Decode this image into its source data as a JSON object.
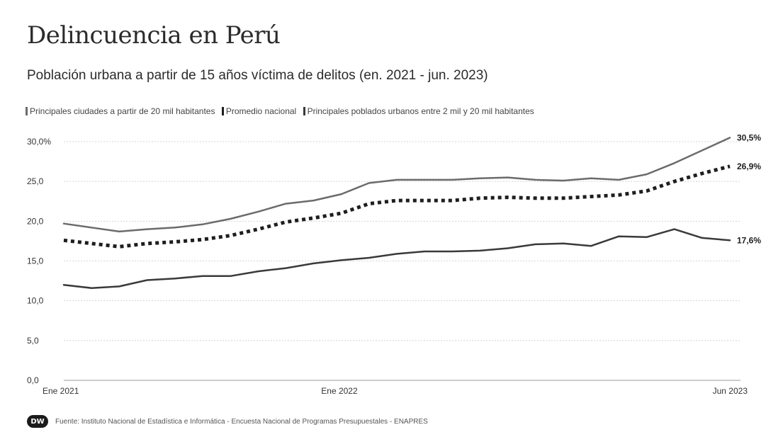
{
  "brand": {
    "logo_text": "DW"
  },
  "source_text": "Fuente: Instituto Nacional de Estadística e Informática - Encuesta Nacional de Programas Presupuestales - ENAPRES",
  "chart_data": {
    "type": "line",
    "title": "Delincuencia en Perú",
    "subtitle": "Población urbana a partir de 15 años víctima de delitos (en. 2021 - jun. 2023)",
    "xlabel": "",
    "ylabel": "",
    "ylim": [
      0,
      30
    ],
    "yticks": [
      "0,0",
      "5,0",
      "10,0",
      "15,0",
      "20,0",
      "25,0",
      "30,0%"
    ],
    "x_tick_labels": [
      {
        "index": 0,
        "label": "Ene 2021"
      },
      {
        "index": 12,
        "label": "Ene 2022"
      },
      {
        "index": 29,
        "label": "Jun 2023"
      }
    ],
    "grid": true,
    "legend_position": "top-left",
    "series": [
      {
        "name": "Principales ciudades a partir de 20 mil habitantes",
        "color": "#6b6b6b",
        "style": "solid",
        "end_label": "30,5%",
        "values": [
          19.7,
          19.2,
          18.7,
          19.0,
          19.2,
          19.6,
          20.3,
          21.2,
          22.2,
          22.6,
          23.4,
          24.8,
          25.2,
          25.2,
          25.2,
          25.4,
          25.5,
          25.2,
          25.1,
          25.4,
          25.2,
          25.9,
          27.3,
          28.9,
          30.5
        ]
      },
      {
        "name": "Promedio nacional",
        "color": "#1e1e1e",
        "style": "dotted",
        "end_label": "26,9%",
        "values": [
          17.6,
          17.2,
          16.8,
          17.2,
          17.4,
          17.7,
          18.2,
          19.0,
          19.9,
          20.4,
          21.0,
          22.2,
          22.6,
          22.6,
          22.6,
          22.9,
          23.0,
          22.9,
          22.9,
          23.1,
          23.3,
          23.8,
          25.0,
          26.0,
          26.9
        ]
      },
      {
        "name": "Principales poblados urbanos entre 2 mil y 20 mil habitantes",
        "color": "#3a3a3a",
        "style": "solid",
        "end_label": "17,6%",
        "values": [
          12.0,
          11.6,
          11.8,
          12.6,
          12.8,
          13.1,
          13.1,
          13.7,
          14.1,
          14.7,
          15.1,
          15.4,
          15.9,
          16.2,
          16.2,
          16.3,
          16.6,
          17.1,
          17.2,
          16.9,
          18.1,
          18.0,
          19.0,
          17.9,
          17.6
        ]
      }
    ]
  }
}
